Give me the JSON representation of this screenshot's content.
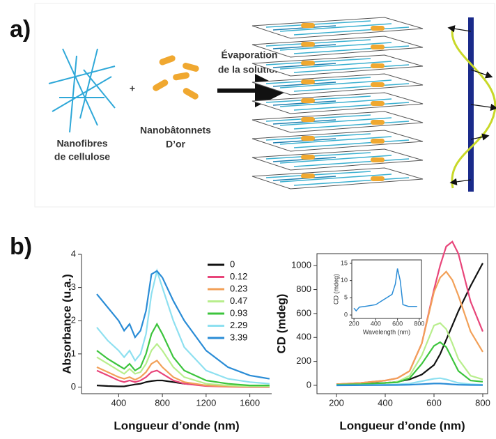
{
  "panel_a": {
    "label": "a)",
    "fibres": [
      "Nanofibres",
      "de cellulose"
    ],
    "plus": "+",
    "rods": [
      "Nanobâtonnets",
      "D’or"
    ],
    "arrow": [
      "Évaporation",
      "de la solution"
    ]
  },
  "panel_b": {
    "label": "b)"
  },
  "chart_data": [
    {
      "type": "line",
      "ylabel": "Absorbance (u.a.)",
      "xlabel": "Longueur d’onde (nm)",
      "x": [
        200,
        300,
        400,
        450,
        500,
        550,
        600,
        650,
        700,
        750,
        800,
        900,
        1000,
        1200,
        1400,
        1600,
        1780
      ],
      "xlim": [
        60,
        1800
      ],
      "xticks": [
        400,
        800,
        1200,
        1600
      ],
      "ylim": [
        -0.2,
        4
      ],
      "yticks": [
        0,
        1,
        2,
        3,
        4
      ],
      "series": [
        {
          "name": "0",
          "color": "#111111",
          "values": [
            0.05,
            0.03,
            0.02,
            0.02,
            0.05,
            0.08,
            0.1,
            0.15,
            0.18,
            0.2,
            0.2,
            0.15,
            0.1,
            0.05,
            0.02,
            0.01,
            0.01
          ]
        },
        {
          "name": "0.12",
          "color": "#e8457a",
          "values": [
            0.5,
            0.35,
            0.2,
            0.15,
            0.2,
            0.15,
            0.2,
            0.3,
            0.45,
            0.5,
            0.4,
            0.2,
            0.1,
            0.03,
            0.01,
            0,
            0
          ]
        },
        {
          "name": "0.23",
          "color": "#f2a058",
          "values": [
            0.6,
            0.45,
            0.3,
            0.25,
            0.3,
            0.22,
            0.3,
            0.45,
            0.7,
            0.8,
            0.6,
            0.3,
            0.15,
            0.05,
            0.02,
            0.01,
            0.01
          ]
        },
        {
          "name": "0.47",
          "color": "#b8ee8c",
          "values": [
            0.9,
            0.7,
            0.5,
            0.4,
            0.55,
            0.4,
            0.45,
            0.7,
            1.1,
            1.3,
            1.1,
            0.6,
            0.3,
            0.1,
            0.05,
            0.02,
            0.02
          ]
        },
        {
          "name": "0.93",
          "color": "#3cc43c",
          "values": [
            1.1,
            0.85,
            0.65,
            0.55,
            0.7,
            0.5,
            0.6,
            1.0,
            1.6,
            1.9,
            1.6,
            0.9,
            0.5,
            0.2,
            0.1,
            0.05,
            0.05
          ]
        },
        {
          "name": "2.29",
          "color": "#8ee0f0",
          "values": [
            1.8,
            1.4,
            1.1,
            0.9,
            1.1,
            0.8,
            1.0,
            1.6,
            2.8,
            3.5,
            3.0,
            2.0,
            1.2,
            0.5,
            0.25,
            0.15,
            0.1
          ]
        },
        {
          "name": "3.39",
          "color": "#2a8cd6",
          "values": [
            2.8,
            2.4,
            2.0,
            1.7,
            1.9,
            1.5,
            1.7,
            2.3,
            3.4,
            3.5,
            3.3,
            2.6,
            2.0,
            1.1,
            0.6,
            0.35,
            0.25
          ]
        }
      ]
    },
    {
      "type": "line",
      "ylabel": "CD (mdeg)",
      "xlabel": "Longueur d’onde (nm)",
      "x": [
        200,
        300,
        400,
        450,
        500,
        550,
        600,
        625,
        650,
        675,
        700,
        750,
        800
      ],
      "xlim": [
        120,
        820
      ],
      "xticks": [
        200,
        400,
        600,
        800
      ],
      "ylim": [
        -70,
        1100
      ],
      "yticks": [
        0,
        200,
        400,
        600,
        800,
        1000
      ],
      "series": [
        {
          "color": "#111111",
          "values": [
            10,
            15,
            20,
            30,
            50,
            90,
            170,
            260,
            380,
            500,
            620,
            830,
            1020
          ]
        },
        {
          "color": "#e8457a",
          "values": [
            10,
            20,
            40,
            60,
            120,
            350,
            800,
            1000,
            1160,
            1200,
            1100,
            700,
            450
          ]
        },
        {
          "color": "#f2a058",
          "values": [
            10,
            20,
            40,
            60,
            120,
            350,
            780,
            900,
            950,
            880,
            750,
            450,
            280
          ]
        },
        {
          "color": "#b8ee8c",
          "values": [
            5,
            10,
            20,
            30,
            80,
            250,
            500,
            520,
            470,
            350,
            220,
            80,
            50
          ]
        },
        {
          "color": "#3cc43c",
          "values": [
            5,
            10,
            20,
            25,
            60,
            180,
            330,
            360,
            320,
            220,
            120,
            40,
            30
          ]
        },
        {
          "color": "#8ee0f0",
          "values": [
            0,
            2,
            5,
            8,
            15,
            35,
            55,
            60,
            50,
            35,
            20,
            10,
            5
          ]
        },
        {
          "color": "#2a8cd6",
          "values": [
            0,
            1,
            2,
            3,
            5,
            10,
            15,
            15,
            12,
            8,
            5,
            3,
            2
          ]
        }
      ]
    },
    {
      "type": "line",
      "ylabel": "CD (mdeg)",
      "xlabel": "Wavelength (nm)",
      "x": [
        200,
        220,
        250,
        300,
        400,
        450,
        500,
        550,
        580,
        600,
        625,
        650,
        700,
        780
      ],
      "xlim": [
        180,
        820
      ],
      "xticks": [
        200,
        400,
        600,
        800
      ],
      "ylim": [
        -1,
        16
      ],
      "yticks": [
        0,
        5,
        10,
        15
      ],
      "series": [
        {
          "color": "#2a8cd6",
          "values": [
            2,
            1.2,
            2.3,
            2.5,
            3,
            4,
            5,
            6,
            9,
            13.5,
            10,
            3,
            2.5,
            2.5
          ]
        }
      ]
    }
  ]
}
